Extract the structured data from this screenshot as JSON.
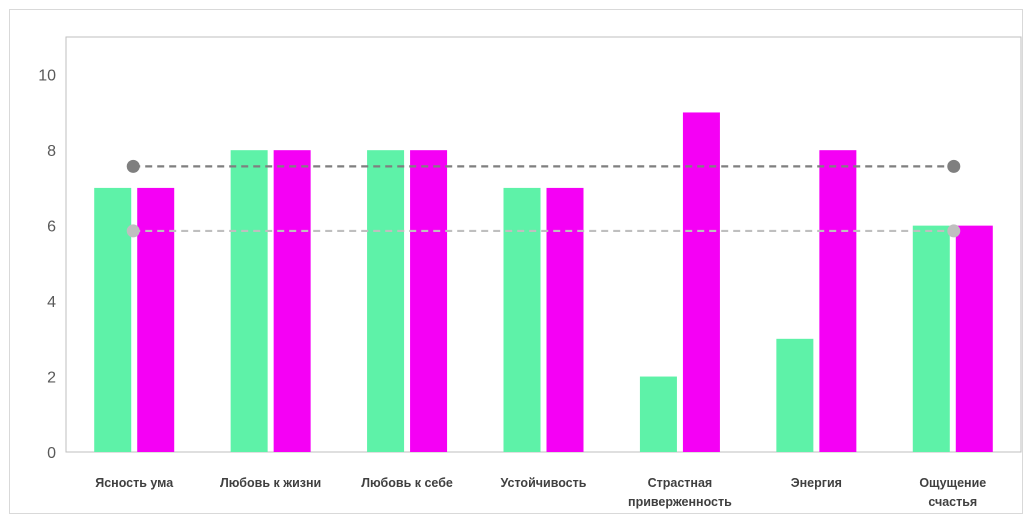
{
  "chart_data": {
    "type": "bar",
    "categories": [
      [
        "Ясность ума"
      ],
      [
        "Любовь к жизни"
      ],
      [
        "Любовь к себе"
      ],
      [
        "Устойчивость"
      ],
      [
        "Страстная",
        "приверженность"
      ],
      [
        "Энергия"
      ],
      [
        "Ощущение",
        "счастья"
      ]
    ],
    "series": [
      {
        "values": [
          7,
          8,
          8,
          7,
          2,
          3,
          6
        ],
        "color": "#5ef2a8"
      },
      {
        "values": [
          7,
          8,
          8,
          7,
          9,
          8,
          6
        ],
        "color": "#f500f5"
      }
    ],
    "reference_lines": [
      {
        "value": 7.57,
        "color": "#7f7f7f"
      },
      {
        "value": 5.86,
        "color": "#bfbfbf"
      }
    ],
    "yticks": [
      "0",
      "2",
      "4",
      "6",
      "8",
      "10"
    ],
    "ylim": [
      0,
      11
    ],
    "grid": false,
    "legend": "none"
  }
}
